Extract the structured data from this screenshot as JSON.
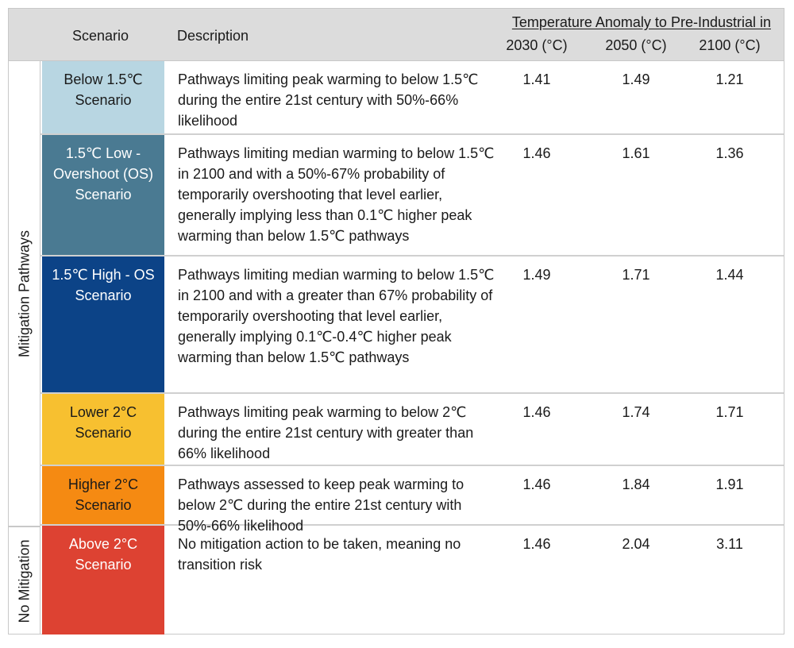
{
  "header": {
    "scenario_label": "Scenario",
    "description_label": "Description",
    "group_label": "Temperature Anomaly to Pre-Industrial in",
    "years": [
      "2030 (°C)",
      "2050 (°C)",
      "2100 (°C)"
    ]
  },
  "groups": {
    "mitigation": "Mitigation Pathways",
    "no_mitigation": "No Mitigation"
  },
  "rows": [
    {
      "scenario": "Below 1.5℃ Scenario",
      "scenario_lines": [
        "Below 1.5℃",
        "Scenario"
      ],
      "color": "#b8d6e2",
      "text_color": "#1a1a1a",
      "description": "Pathways limiting peak warming to below 1.5℃ during the entire 21st century with 50%-66% likelihood",
      "v2030": "1.41",
      "v2050": "1.49",
      "v2100": "1.21"
    },
    {
      "scenario": "1.5℃ Low - Overshoot (OS) Scenario",
      "scenario_lines": [
        "1.5℃ Low -",
        "Overshoot (OS)",
        "Scenario"
      ],
      "color": "#4a7a92",
      "text_color": "#ffffff",
      "description": "Pathways limiting median warming to below 1.5℃ in 2100 and with a 50%-67% probability of temporarily overshooting that level earlier, generally implying less than 0.1℃ higher peak warming than below 1.5℃ pathways",
      "v2030": "1.46",
      "v2050": "1.61",
      "v2100": "1.36"
    },
    {
      "scenario": "1.5℃ High - OS Scenario",
      "scenario_lines": [
        "1.5℃ High - OS",
        "Scenario"
      ],
      "color": "#0c4387",
      "text_color": "#ffffff",
      "description": "Pathways limiting median warming to below 1.5℃ in 2100 and with a greater than 67% probability of temporarily overshooting that level earlier, generally implying 0.1℃-0.4℃ higher peak warming than below 1.5℃ pathways",
      "v2030": "1.49",
      "v2050": "1.71",
      "v2100": "1.44"
    },
    {
      "scenario": "Lower 2°C Scenario",
      "scenario_lines": [
        "Lower 2°C",
        "Scenario"
      ],
      "color": "#f7c030",
      "text_color": "#1a1a1a",
      "description": "Pathways limiting peak warming to below 2℃ during the entire 21st century with greater than 66% likelihood",
      "v2030": "1.46",
      "v2050": "1.74",
      "v2100": "1.71"
    },
    {
      "scenario": "Higher 2°C Scenario",
      "scenario_lines": [
        "Higher 2°C",
        "Scenario"
      ],
      "color": "#f58a12",
      "text_color": "#1a1a1a",
      "description": "Pathways assessed to keep peak warming to below 2℃ during the entire 21st century with 50%-66% likelihood",
      "v2030": "1.46",
      "v2050": "1.84",
      "v2100": "1.91"
    },
    {
      "scenario": "Above 2°C Scenario",
      "scenario_lines": [
        "Above 2°C",
        "Scenario"
      ],
      "color": "#dd4232",
      "text_color": "#ffffff",
      "description": "No mitigation action to be taken, meaning no transition risk",
      "v2030": "1.46",
      "v2050": "2.04",
      "v2100": "3.11"
    }
  ]
}
